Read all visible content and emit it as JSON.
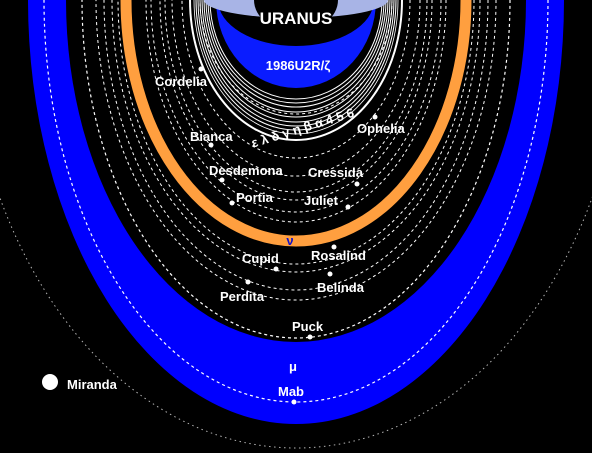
{
  "planet": {
    "name": "URANUS"
  },
  "rings": {
    "inner": "1986U2R/ζ",
    "main_greek": "ε λ δ γ η β α 4 5 6",
    "nu": "ν",
    "mu": "μ"
  },
  "moons": [
    {
      "key": "cordelia",
      "name": "Cordelia"
    },
    {
      "key": "ophelia",
      "name": "Ophelia"
    },
    {
      "key": "bianca",
      "name": "Bianca"
    },
    {
      "key": "desdemona",
      "name": "Desdemona"
    },
    {
      "key": "cressida",
      "name": "Cressida"
    },
    {
      "key": "portia",
      "name": "Portia"
    },
    {
      "key": "juliet",
      "name": "Juliet"
    },
    {
      "key": "cupid",
      "name": "Cupid"
    },
    {
      "key": "rosalind",
      "name": "Rosalind"
    },
    {
      "key": "perdita",
      "name": "Perdita"
    },
    {
      "key": "belinda",
      "name": "Belinda"
    },
    {
      "key": "puck",
      "name": "Puck"
    },
    {
      "key": "mab",
      "name": "Mab"
    },
    {
      "key": "miranda",
      "name": "Miranda"
    }
  ],
  "colors": {
    "background": "#000000",
    "mu_ring": "#0000ff",
    "nu_ring": "#ff9f3f",
    "planet": "#a8b4e6",
    "inner_band": "#0a1cff",
    "nu_label": "#1010c8"
  }
}
